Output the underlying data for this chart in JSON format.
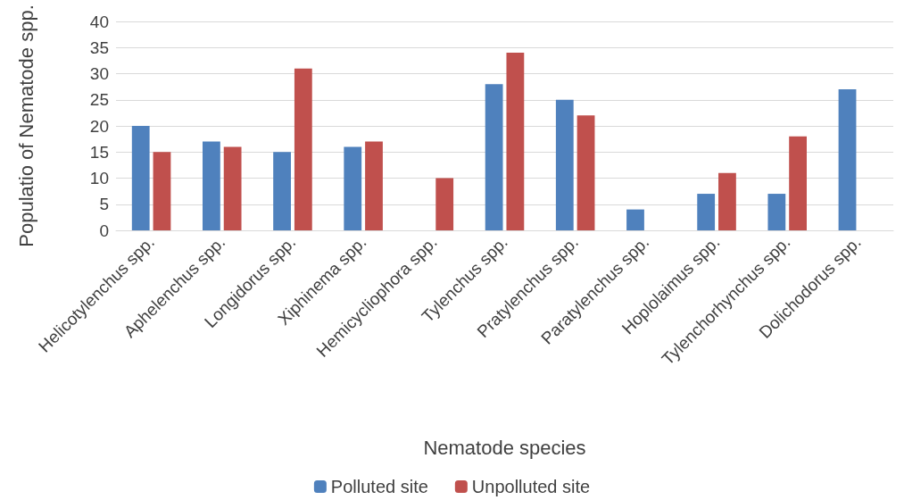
{
  "chart_data": {
    "type": "bar",
    "xlabel": "Nematode species",
    "ylabel": "Populatio of Nematode spp.",
    "categories": [
      "Helicotylenchus spp.",
      "Aphelenchus spp.",
      "Longidorus spp.",
      "Xiphinema spp.",
      "Hemicycliophora spp.",
      "Tylenchus spp.",
      "Pratylenchus spp.",
      "Paratylenchus spp.",
      "Hoplolaimus spp.",
      "Tylenchorhynchus spp.",
      "Dolichodorus spp."
    ],
    "series": [
      {
        "name": "Polluted site",
        "color": "#4f81bd",
        "values": [
          20,
          17,
          15,
          16,
          0,
          28,
          25,
          4,
          7,
          7,
          27
        ]
      },
      {
        "name": "Unpolluted site",
        "color": "#c0504d",
        "values": [
          15,
          16,
          31,
          17,
          10,
          34,
          22,
          0,
          11,
          18,
          0
        ]
      }
    ],
    "ylim": [
      0,
      40
    ],
    "yticks": [
      0,
      5,
      10,
      15,
      20,
      25,
      30,
      35,
      40
    ],
    "grid": "y",
    "legend": "bottom"
  }
}
